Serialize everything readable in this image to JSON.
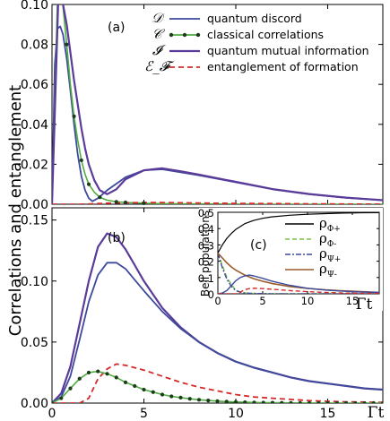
{
  "ylabel": "Correlations and entanglement",
  "xlabel": "Γt",
  "colors": {
    "discord": "#3d4a9c",
    "classical": "#4fae3f",
    "mutual": "#5b3b9a",
    "eof": "#d42a2a",
    "frame": "#000000"
  },
  "chart_data": [
    {
      "type": "line",
      "panel_label": "(a)",
      "xlim": [
        0,
        18
      ],
      "ylim": [
        0,
        0.1
      ],
      "x_ticks": [
        0,
        5,
        10,
        15
      ],
      "y_ticks": [
        0.0,
        0.02,
        0.04,
        0.06,
        0.08,
        0.1
      ],
      "y_tick_labels": [
        "0.00",
        "0.02",
        "0.04",
        "0.06",
        "0.08",
        "0.10"
      ],
      "legend": [
        {
          "symbol": "𝒟",
          "name": "quantum discord",
          "style": "solid",
          "color": "#3d4a9c"
        },
        {
          "symbol": "𝒞",
          "name": "classical correlations",
          "style": "dot-line",
          "color": "#4fae3f"
        },
        {
          "symbol": "𝓘",
          "name": "quantum mutual information",
          "style": "solid",
          "color": "#5b3b9a"
        },
        {
          "symbol": "ℰ_𝓕",
          "name": "entanglement of formation",
          "style": "dashed",
          "color": "#d42a2a"
        }
      ],
      "series": [
        {
          "key": "discord",
          "x": [
            0.0,
            0.15,
            0.3,
            0.45,
            0.6,
            0.8,
            1.0,
            1.2,
            1.4,
            1.6,
            1.8,
            2.0,
            2.2,
            2.5,
            3.0,
            4.0,
            5.0,
            6.0,
            7.0,
            8.0,
            10.0,
            12.0,
            14.0,
            16.0,
            18.0
          ],
          "y": [
            0.0,
            0.07,
            0.088,
            0.089,
            0.085,
            0.073,
            0.057,
            0.04,
            0.025,
            0.014,
            0.007,
            0.003,
            0.0015,
            0.003,
            0.007,
            0.0135,
            0.017,
            0.0175,
            0.016,
            0.0145,
            0.011,
            0.0075,
            0.005,
            0.0032,
            0.002
          ]
        },
        {
          "key": "classical",
          "x": [
            0.0,
            0.35,
            0.6,
            0.8,
            1.0,
            1.2,
            1.4,
            1.6,
            1.8,
            2.0,
            2.3,
            2.6,
            3.0,
            3.5,
            4.0,
            5.0,
            6.0,
            7.0,
            8.0,
            10.0,
            12.0,
            14.0,
            16.0,
            18.0
          ],
          "y": [
            0.0,
            0.12,
            0.099,
            0.08,
            0.06,
            0.044,
            0.032,
            0.022,
            0.015,
            0.01,
            0.006,
            0.0035,
            0.002,
            0.0012,
            0.0009,
            0.0005,
            0.0003,
            0.0002,
            0.00012,
            5e-05,
            2e-05,
            0.0,
            0.0,
            0.0
          ]
        },
        {
          "key": "mutual",
          "x": [
            0.0,
            0.4,
            0.6,
            0.8,
            1.0,
            1.2,
            1.4,
            1.6,
            1.8,
            2.0,
            2.3,
            2.6,
            3.0,
            3.5,
            4.0,
            5.0,
            6.0,
            7.0,
            8.0,
            10.0,
            12.0,
            14.0,
            16.0,
            18.0
          ],
          "y": [
            0.0,
            0.12,
            0.1,
            0.09,
            0.076,
            0.062,
            0.05,
            0.038,
            0.028,
            0.02,
            0.012,
            0.007,
            0.005,
            0.0075,
            0.0125,
            0.017,
            0.018,
            0.0165,
            0.0148,
            0.0112,
            0.0076,
            0.0051,
            0.0033,
            0.002
          ]
        },
        {
          "key": "eof",
          "x": [
            0.0,
            1.5,
            2.0,
            2.5,
            3.0,
            4.0,
            5.0,
            6.0,
            7.0,
            8.0,
            10.0,
            12.0,
            14.0,
            16.0,
            18.0
          ],
          "y": [
            0.0,
            0.0,
            0.0001,
            0.0003,
            0.0005,
            0.0007,
            0.0008,
            0.0008,
            0.0007,
            0.0006,
            0.0004,
            0.0003,
            0.0002,
            0.0001,
            0.0
          ]
        }
      ]
    },
    {
      "type": "line",
      "panel_label": "(b)",
      "xlim": [
        0,
        18
      ],
      "ylim": [
        0,
        0.16
      ],
      "x_ticks": [
        0,
        5,
        10,
        15
      ],
      "y_ticks": [
        0.0,
        0.05,
        0.1,
        0.15
      ],
      "y_tick_labels": [
        "0.00",
        "0.05",
        "0.10",
        "0.15"
      ],
      "series": [
        {
          "key": "mutual",
          "x": [
            0,
            0.5,
            1.0,
            1.5,
            2.0,
            2.5,
            3.0,
            3.5,
            4.0,
            4.5,
            5.0,
            6.0,
            7.0,
            8.0,
            9.0,
            10.0,
            11.0,
            12.0,
            13.0,
            14.0,
            15.0,
            16.0,
            17.0,
            18.0
          ],
          "y": [
            0.0,
            0.008,
            0.03,
            0.065,
            0.1,
            0.128,
            0.139,
            0.136,
            0.126,
            0.113,
            0.1,
            0.078,
            0.062,
            0.05,
            0.041,
            0.034,
            0.029,
            0.025,
            0.021,
            0.018,
            0.016,
            0.014,
            0.012,
            0.011
          ]
        },
        {
          "key": "discord",
          "x": [
            0,
            0.5,
            1.0,
            1.5,
            2.0,
            2.5,
            3.0,
            3.5,
            4.0,
            4.5,
            5.0,
            6.0,
            7.0,
            8.0,
            9.0,
            10.0,
            11.0,
            12.0,
            13.0,
            14.0,
            15.0,
            16.0,
            17.0,
            18.0
          ],
          "y": [
            0.0,
            0.005,
            0.022,
            0.052,
            0.083,
            0.105,
            0.115,
            0.115,
            0.11,
            0.101,
            0.092,
            0.075,
            0.061,
            0.05,
            0.041,
            0.034,
            0.029,
            0.025,
            0.021,
            0.018,
            0.016,
            0.014,
            0.012,
            0.011
          ]
        },
        {
          "key": "eof",
          "x": [
            0,
            1.5,
            2.0,
            2.5,
            3.0,
            3.5,
            4.0,
            5.0,
            6.0,
            7.0,
            8.0,
            9.0,
            10.0,
            11.0,
            12.0,
            13.0,
            14.0,
            15.0,
            16.0,
            17.0,
            18.0
          ],
          "y": [
            0.0,
            0.0,
            0.004,
            0.02,
            0.028,
            0.032,
            0.031,
            0.027,
            0.022,
            0.017,
            0.013,
            0.01,
            0.007,
            0.005,
            0.004,
            0.003,
            0.002,
            0.0015,
            0.001,
            0.0008,
            0.0005
          ]
        },
        {
          "key": "classical",
          "markers": true,
          "x": [
            0,
            0.5,
            1.0,
            1.5,
            2.0,
            2.5,
            3.0,
            3.5,
            4.0,
            4.5,
            5.0,
            5.5,
            6.0,
            6.5,
            7.0,
            7.5,
            8.0,
            8.5,
            9.0,
            9.5,
            10.0,
            10.5,
            11.0,
            11.5,
            12.0,
            12.5,
            13.0,
            13.5,
            14.0,
            14.5,
            15.0,
            15.5,
            16.0,
            16.5,
            17.0,
            17.5,
            18.0
          ],
          "y": [
            0.0,
            0.004,
            0.012,
            0.02,
            0.025,
            0.026,
            0.024,
            0.021,
            0.017,
            0.014,
            0.011,
            0.009,
            0.007,
            0.0055,
            0.0045,
            0.0035,
            0.0027,
            0.0021,
            0.0016,
            0.0012,
            0.0009,
            0.0007,
            0.0005,
            0.0004,
            0.0003,
            0.0002,
            0.00015,
            0.0001,
            0.0001,
            5e-05,
            5e-05,
            0.0,
            0.0,
            0.0,
            0.0,
            0.0,
            0.0
          ]
        }
      ]
    },
    {
      "type": "line",
      "panel_label": "(c)",
      "ylabel": "Bell populations",
      "xlabel": "Γt",
      "xlim": [
        0,
        18
      ],
      "ylim": [
        0,
        0.5
      ],
      "x_ticks": [
        0,
        5,
        10,
        15
      ],
      "y_ticks": [
        0,
        0.1,
        0.2,
        0.3,
        0.4,
        0.5
      ],
      "y_tick_labels": [
        "0",
        "0.1",
        "0.2",
        "0.3",
        "0.4",
        "0.5"
      ],
      "legend": [
        {
          "base": "ρ",
          "sub": "Φ+",
          "style": "solid",
          "color": "#000000"
        },
        {
          "base": "ρ",
          "sub": "Φ-",
          "style": "dashed",
          "color": "#7cc243"
        },
        {
          "base": "ρ",
          "sub": "Ψ+",
          "style": "dashdot",
          "color": "#3d4a9c"
        },
        {
          "base": "ρ",
          "sub": "Ψ-",
          "style": "solid",
          "color": "#9a5a2a"
        }
      ],
      "series": [
        {
          "key": "phi_plus",
          "x": [
            0,
            0.5,
            1.0,
            1.5,
            2.0,
            3.0,
            4.0,
            5.0,
            6.0,
            8.0,
            10.0,
            12.0,
            14.0,
            16.0,
            18.0
          ],
          "y": [
            0.25,
            0.3,
            0.34,
            0.37,
            0.395,
            0.43,
            0.45,
            0.463,
            0.472,
            0.482,
            0.488,
            0.492,
            0.495,
            0.497,
            0.498
          ]
        },
        {
          "key": "phi_minus",
          "x": [
            0,
            1.0,
            2.0,
            3.0,
            4.0,
            5.0,
            6.0,
            8.0,
            10.0,
            12.0,
            14.0,
            16.0,
            18.0
          ],
          "y": [
            0.25,
            0.1,
            0.02,
            0.005,
            0.002,
            0.001,
            0.001,
            0.0,
            0.0,
            0.0,
            0.0,
            0.0,
            0.0
          ]
        },
        {
          "key": "psi_plus",
          "x": [
            0,
            0.5,
            1.0,
            1.5,
            2.0,
            2.5,
            3.0,
            4.0,
            6.0,
            8.0,
            10.0,
            14.0,
            18.0
          ],
          "y": [
            0.25,
            0.16,
            0.09,
            0.045,
            0.02,
            0.01,
            0.005,
            0.002,
            0.0005,
            0.0,
            0.0,
            0.0,
            0.0
          ]
        },
        {
          "key": "psi_minus",
          "x": [
            0,
            0.5,
            1.0,
            1.5,
            2.0,
            3.0,
            4.0,
            5.0,
            6.0,
            8.0,
            10.0,
            12.0,
            14.0,
            16.0,
            18.0
          ],
          "y": [
            0.25,
            0.22,
            0.19,
            0.165,
            0.145,
            0.115,
            0.093,
            0.077,
            0.064,
            0.045,
            0.033,
            0.024,
            0.018,
            0.013,
            0.009
          ]
        },
        {
          "key": "discord_inset",
          "x": [
            0,
            0.5,
            1.0,
            1.5,
            2.0,
            2.5,
            3.0,
            3.5,
            4.0,
            5.0,
            6.0,
            8.0,
            10.0,
            12.0,
            14.0,
            16.0,
            18.0
          ],
          "y": [
            0.0,
            0.005,
            0.02,
            0.05,
            0.08,
            0.1,
            0.11,
            0.115,
            0.11,
            0.095,
            0.078,
            0.052,
            0.034,
            0.023,
            0.016,
            0.011,
            0.008
          ]
        },
        {
          "key": "eof_inset",
          "x": [
            0,
            2.0,
            2.5,
            3.0,
            3.5,
            4.0,
            5.0,
            6.0,
            8.0,
            10.0,
            12.0,
            14.0,
            16.0,
            18.0
          ],
          "y": [
            0.0,
            0.0,
            0.01,
            0.025,
            0.032,
            0.034,
            0.032,
            0.028,
            0.02,
            0.013,
            0.008,
            0.005,
            0.003,
            0.002
          ]
        }
      ]
    }
  ]
}
